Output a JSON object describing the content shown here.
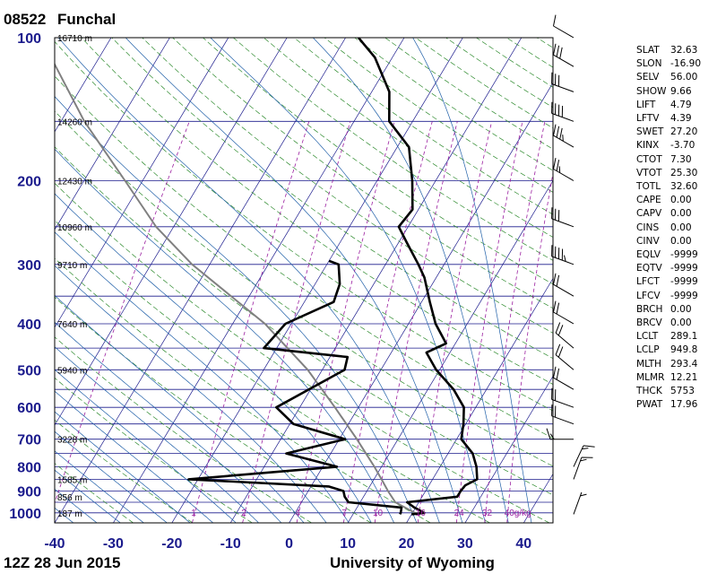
{
  "station": {
    "id": "08522",
    "name": "Funchal"
  },
  "footer": {
    "time": "12Z 28 Jun 2015",
    "source": "University of Wyoming"
  },
  "colors": {
    "isobar": "#1a1a8c",
    "isotherm": "#1a1a8c",
    "dry_adiabat": "#2e8b2e",
    "moist_adiabat": "#1f5fa8",
    "mixing_ratio": "#9b1fa0",
    "parcel": "#808080",
    "profile": "#000000",
    "pressure_label": "#1a1a8c"
  },
  "indices": [
    {
      "k": "SLAT",
      "v": "32.63"
    },
    {
      "k": "SLON",
      "v": "-16.90"
    },
    {
      "k": "SELV",
      "v": "56.00"
    },
    {
      "k": "SHOW",
      "v": "9.66"
    },
    {
      "k": "LIFT",
      "v": "4.79"
    },
    {
      "k": "LFTV",
      "v": "4.39"
    },
    {
      "k": "SWET",
      "v": "27.20"
    },
    {
      "k": "KINX",
      "v": "-3.70"
    },
    {
      "k": "CTOT",
      "v": "7.30"
    },
    {
      "k": "VTOT",
      "v": "25.30"
    },
    {
      "k": "TOTL",
      "v": "32.60"
    },
    {
      "k": "CAPE",
      "v": "0.00"
    },
    {
      "k": "CAPV",
      "v": "0.00"
    },
    {
      "k": "CINS",
      "v": "0.00"
    },
    {
      "k": "CINV",
      "v": "0.00"
    },
    {
      "k": "EQLV",
      "v": "-9999"
    },
    {
      "k": "EQTV",
      "v": "-9999"
    },
    {
      "k": "LFCT",
      "v": "-9999"
    },
    {
      "k": "LFCV",
      "v": "-9999"
    },
    {
      "k": "BRCH",
      "v": "0.00"
    },
    {
      "k": "BRCV",
      "v": "0.00"
    },
    {
      "k": "LCLT",
      "v": "289.1"
    },
    {
      "k": "LCLP",
      "v": "949.8"
    },
    {
      "k": "MLTH",
      "v": "293.4"
    },
    {
      "k": "MLMR",
      "v": "12.21"
    },
    {
      "k": "THCK",
      "v": "5753"
    },
    {
      "k": "PWAT",
      "v": "17.96"
    }
  ],
  "chart_data": {
    "type": "line",
    "title": "08522 Funchal",
    "subtitle": "12Z 28 Jun 2015",
    "xlabel": "",
    "ylabel": "",
    "xlim": [
      -40,
      45
    ],
    "ylim": [
      1050,
      100
    ],
    "y_scale": "log",
    "x_ticks": [
      -40,
      -30,
      -20,
      -10,
      0,
      10,
      20,
      30,
      40
    ],
    "y_ticks": [
      100,
      200,
      300,
      400,
      500,
      600,
      700,
      800,
      900,
      1000
    ],
    "height_labels": [
      {
        "p": 100,
        "text": "16710 m"
      },
      {
        "p": 150,
        "text": "14260 m"
      },
      {
        "p": 200,
        "text": "12430 m"
      },
      {
        "p": 250,
        "text": "10960 m"
      },
      {
        "p": 300,
        "text": "9710 m"
      },
      {
        "p": 400,
        "text": "7640 m"
      },
      {
        "p": 500,
        "text": "5940 m"
      },
      {
        "p": 700,
        "text": "3228 m"
      },
      {
        "p": 850,
        "text": "1585 m"
      },
      {
        "p": 925,
        "text": "856 m"
      },
      {
        "p": 1000,
        "text": "187 m"
      }
    ],
    "mixing_ratio_labels": [
      {
        "w": 0.1,
        "text": "0.1"
      },
      {
        "w": 1,
        "text": "1"
      },
      {
        "w": 2,
        "text": "2"
      },
      {
        "w": 4,
        "text": "4"
      },
      {
        "w": 7,
        "text": "7"
      },
      {
        "w": 10,
        "text": "10"
      },
      {
        "w": 16,
        "text": "16"
      },
      {
        "w": 24,
        "text": "24"
      },
      {
        "w": 32,
        "text": "32"
      },
      {
        "w": 40,
        "text": "40g/kg"
      }
    ],
    "series": [
      {
        "role": "temperature",
        "points": [
          {
            "p": 1007,
            "t": 20.0
          },
          {
            "p": 1000,
            "t": 22.0
          },
          {
            "p": 975,
            "t": 19.8
          },
          {
            "p": 950,
            "t": 18.0
          },
          {
            "p": 925,
            "t": 26.0
          },
          {
            "p": 900,
            "t": 26.0
          },
          {
            "p": 875,
            "t": 26.2
          },
          {
            "p": 850,
            "t": 27.6
          },
          {
            "p": 800,
            "t": 26.2
          },
          {
            "p": 750,
            "t": 24.2
          },
          {
            "p": 700,
            "t": 20.8
          },
          {
            "p": 650,
            "t": 19.6
          },
          {
            "p": 600,
            "t": 18.0
          },
          {
            "p": 550,
            "t": 14.4
          },
          {
            "p": 500,
            "t": 9.4
          },
          {
            "p": 460,
            "t": 6.0
          },
          {
            "p": 440,
            "t": 8.4
          },
          {
            "p": 400,
            "t": 4.6
          },
          {
            "p": 360,
            "t": 1.4
          },
          {
            "p": 320,
            "t": -2.0
          },
          {
            "p": 300,
            "t": -4.4
          },
          {
            "p": 270,
            "t": -8.6
          },
          {
            "p": 250,
            "t": -11.6
          },
          {
            "p": 230,
            "t": -11.0
          },
          {
            "p": 200,
            "t": -14.0
          },
          {
            "p": 170,
            "t": -18.0
          },
          {
            "p": 150,
            "t": -24.0
          },
          {
            "p": 130,
            "t": -27.0
          },
          {
            "p": 110,
            "t": -33.0
          },
          {
            "p": 100,
            "t": -37.8
          }
        ]
      },
      {
        "role": "dewpoint",
        "points": [
          {
            "p": 1007,
            "t": 18.0
          },
          {
            "p": 1000,
            "t": 18.0
          },
          {
            "p": 975,
            "t": 17.6
          },
          {
            "p": 950,
            "t": 8.0
          },
          {
            "p": 925,
            "t": 6.8
          },
          {
            "p": 900,
            "t": 6.0
          },
          {
            "p": 880,
            "t": 3.0
          },
          {
            "p": 850,
            "t": -21.6
          },
          {
            "p": 800,
            "t": 2.4
          },
          {
            "p": 750,
            "t": -7.6
          },
          {
            "p": 700,
            "t": 1.0
          },
          {
            "p": 650,
            "t": -9.4
          },
          {
            "p": 600,
            "t": -14.0
          },
          {
            "p": 500,
            "t": -6.2
          },
          {
            "p": 470,
            "t": -7.0
          },
          {
            "p": 450,
            "t": -22.2
          },
          {
            "p": 400,
            "t": -21.0
          },
          {
            "p": 360,
            "t": -15.0
          },
          {
            "p": 330,
            "t": -15.8
          },
          {
            "p": 300,
            "t": -18.0
          },
          {
            "p": 295,
            "t": -20.0
          }
        ]
      },
      {
        "role": "parcel",
        "points": [
          {
            "p": 1007,
            "t": 21.0
          },
          {
            "p": 950,
            "t": 16.0
          },
          {
            "p": 900,
            "t": 13.6
          },
          {
            "p": 850,
            "t": 11.3
          },
          {
            "p": 800,
            "t": 8.8
          },
          {
            "p": 700,
            "t": 3.0
          },
          {
            "p": 600,
            "t": -4.0
          },
          {
            "p": 500,
            "t": -12.5
          },
          {
            "p": 400,
            "t": -24.5
          },
          {
            "p": 300,
            "t": -43.0
          },
          {
            "p": 250,
            "t": -53.0
          },
          {
            "p": 200,
            "t": -63.0
          },
          {
            "p": 150,
            "t": -76.0
          },
          {
            "p": 100,
            "t": -92.0
          }
        ]
      }
    ],
    "winds": [
      {
        "p": 1007,
        "dir": 20,
        "spd": 5
      },
      {
        "p": 850,
        "dir": 20,
        "spd": 15
      },
      {
        "p": 800,
        "dir": 25,
        "spd": 15
      },
      {
        "p": 700,
        "dir": 270,
        "spd": 15
      },
      {
        "p": 650,
        "dir": 290,
        "spd": 20
      },
      {
        "p": 600,
        "dir": 290,
        "spd": 20
      },
      {
        "p": 550,
        "dir": 300,
        "spd": 20
      },
      {
        "p": 500,
        "dir": 310,
        "spd": 20
      },
      {
        "p": 450,
        "dir": 310,
        "spd": 20
      },
      {
        "p": 400,
        "dir": 300,
        "spd": 20
      },
      {
        "p": 350,
        "dir": 300,
        "spd": 20
      },
      {
        "p": 300,
        "dir": 290,
        "spd": 45
      },
      {
        "p": 250,
        "dir": 290,
        "spd": 30
      },
      {
        "p": 200,
        "dir": 300,
        "spd": 25
      },
      {
        "p": 170,
        "dir": 300,
        "spd": 35
      },
      {
        "p": 150,
        "dir": 290,
        "spd": 40
      },
      {
        "p": 130,
        "dir": 290,
        "spd": 30
      },
      {
        "p": 115,
        "dir": 300,
        "spd": 30
      },
      {
        "p": 100,
        "dir": 300,
        "spd": 10
      }
    ]
  }
}
